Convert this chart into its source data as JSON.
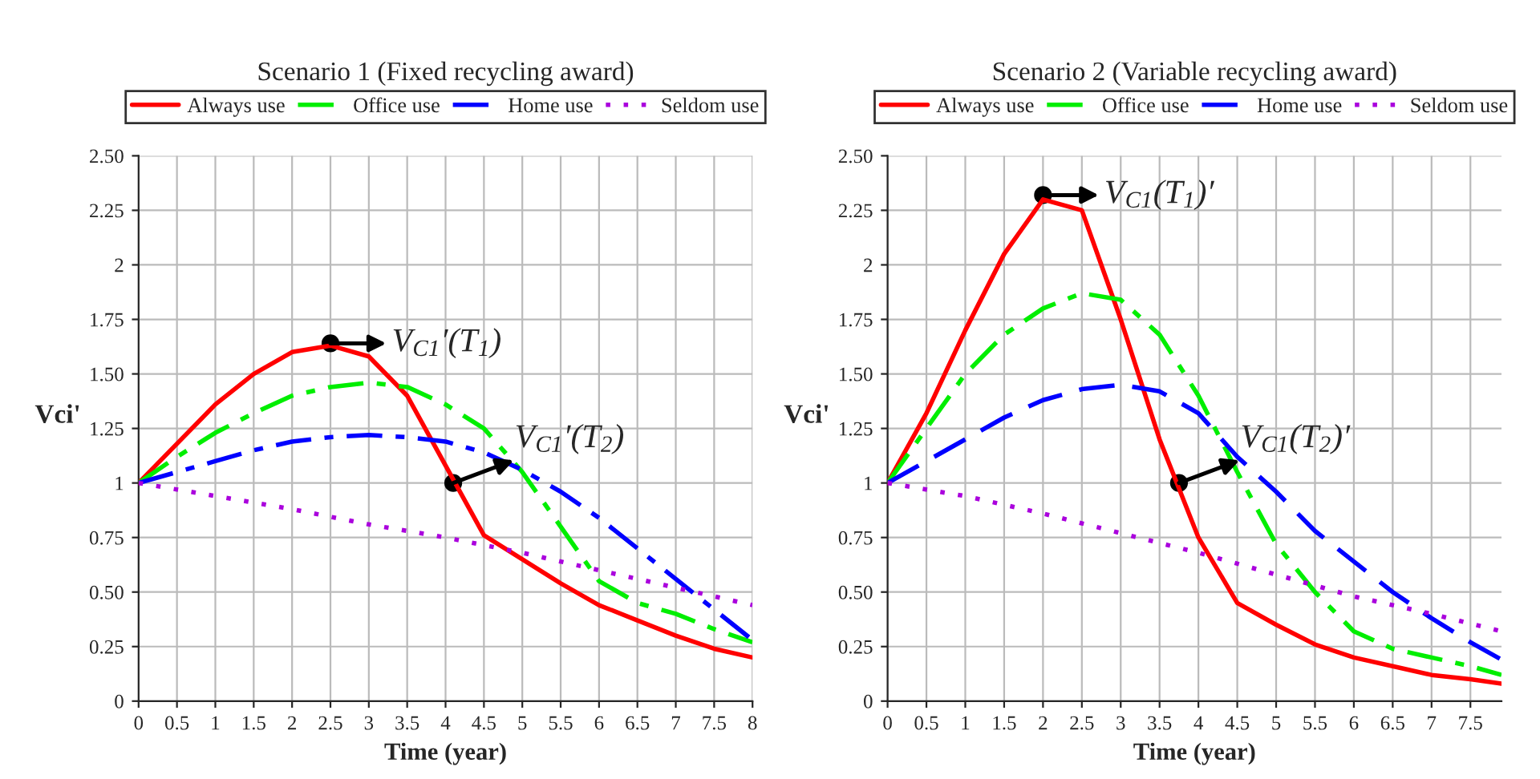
{
  "chart_data": [
    {
      "type": "line",
      "title": "Scenario 1 (Fixed recycling award)",
      "xlabel": "Time (year)",
      "ylabel": "Vci'",
      "xlim": [
        0,
        8
      ],
      "xticks": [
        0,
        0.5,
        1,
        1.5,
        2,
        2.5,
        3,
        3.5,
        4,
        4.5,
        5,
        5.5,
        6,
        6.5,
        7,
        7.5,
        8
      ],
      "ylim": [
        0,
        2.5
      ],
      "yticks": [
        0,
        0.25,
        {
          "value": 0.5,
          "label": "0.50"
        },
        0.75,
        1,
        1.25,
        {
          "value": 1.5,
          "label": "1.50"
        },
        1.75,
        2,
        2.25,
        {
          "value": 2.5,
          "label": "2.50"
        }
      ],
      "grid": true,
      "legend": "top",
      "marker": "none",
      "annotations": [
        {
          "text": "V$_{C1}$′(T$_{1}$)",
          "x": 2.5,
          "y": 1.64
        },
        {
          "text": "V$_{C1}$′(T$_{2}$)",
          "x": 4.1,
          "y": 1.0
        }
      ],
      "series": [
        {
          "name": "Always use",
          "color": "#ff0000",
          "line_style": "solid",
          "x": [
            0,
            0.5,
            1,
            1.5,
            2,
            2.5,
            3,
            3.5,
            4,
            4.5,
            5,
            5.5,
            6,
            6.5,
            7,
            7.5,
            8
          ],
          "values": [
            1,
            1.18,
            1.36,
            1.5,
            1.6,
            1.63,
            1.58,
            1.4,
            1.08,
            0.76,
            0.65,
            0.54,
            0.44,
            0.37,
            0.3,
            0.24,
            0.2
          ]
        },
        {
          "name": "Office use",
          "color": "#00ee00",
          "line_style": "dashdot",
          "x": [
            0,
            0.5,
            1,
            1.5,
            2,
            2.5,
            3,
            3.5,
            4,
            4.5,
            5,
            5.5,
            6,
            6.5,
            7,
            7.5,
            8
          ],
          "values": [
            1,
            1.12,
            1.23,
            1.32,
            1.4,
            1.44,
            1.46,
            1.44,
            1.36,
            1.25,
            1.05,
            0.8,
            0.55,
            0.45,
            0.4,
            0.33,
            0.27
          ]
        },
        {
          "name": "Home use",
          "color": "#0000ff",
          "line_style": "dashdot",
          "x": [
            0,
            0.5,
            1,
            1.5,
            2,
            2.5,
            3,
            3.5,
            4,
            4.5,
            5,
            5.5,
            6,
            6.5,
            7,
            7.5,
            8
          ],
          "values": [
            1,
            1.05,
            1.1,
            1.15,
            1.19,
            1.21,
            1.22,
            1.21,
            1.19,
            1.14,
            1.06,
            0.96,
            0.84,
            0.7,
            0.56,
            0.42,
            0.28
          ]
        },
        {
          "name": "Seldom use",
          "color": "#aa00dd",
          "line_style": "dotted",
          "x": [
            0,
            1,
            2,
            3,
            4,
            5,
            6,
            7,
            8
          ],
          "values": [
            1,
            0.94,
            0.88,
            0.81,
            0.75,
            0.68,
            0.6,
            0.52,
            0.44
          ]
        }
      ]
    },
    {
      "type": "line",
      "title": "Scenario 2 (Variable recycling award)",
      "xlabel": "Time (year)",
      "ylabel": "Vci'",
      "xlim": [
        0,
        7.9
      ],
      "xticks": [
        0,
        0.5,
        1,
        1.5,
        2,
        2.5,
        3,
        3.5,
        4,
        4.5,
        5,
        5.5,
        6,
        6.5,
        7,
        7.5
      ],
      "ylim": [
        0,
        2.5
      ],
      "yticks": [
        0,
        0.25,
        {
          "value": 0.5,
          "label": "0.50"
        },
        0.75,
        1,
        1.25,
        {
          "value": 1.5,
          "label": "1.50"
        },
        1.75,
        2,
        2.25,
        {
          "value": 2.5,
          "label": "2.50"
        }
      ],
      "grid": true,
      "legend": "top",
      "marker": "none",
      "annotations": [
        {
          "text": "V$_{C1}$(T$_{1}$)′",
          "x": 2,
          "y": 2.32
        },
        {
          "text": "V$_{C1}$(T$_{2}$)′",
          "x": 3.75,
          "y": 1.0
        }
      ],
      "series": [
        {
          "name": "Always use",
          "color": "#ff0000",
          "line_style": "solid",
          "x": [
            0,
            0.5,
            1,
            1.5,
            2,
            2.5,
            3,
            3.5,
            4,
            4.5,
            5,
            5.5,
            6,
            6.5,
            7,
            7.5,
            7.9
          ],
          "values": [
            1,
            1.32,
            1.7,
            2.05,
            2.3,
            2.25,
            1.75,
            1.2,
            0.75,
            0.45,
            0.35,
            0.26,
            0.2,
            0.16,
            0.12,
            0.1,
            0.08
          ]
        },
        {
          "name": "Office use",
          "color": "#00ee00",
          "line_style": "dashdot",
          "x": [
            0,
            0.5,
            1,
            1.5,
            2,
            2.5,
            3,
            3.5,
            4,
            4.5,
            5,
            5.5,
            6,
            6.5,
            7,
            7.5,
            7.9
          ],
          "values": [
            1,
            1.25,
            1.5,
            1.68,
            1.8,
            1.87,
            1.84,
            1.68,
            1.4,
            1.05,
            0.72,
            0.5,
            0.32,
            0.24,
            0.2,
            0.16,
            0.12
          ]
        },
        {
          "name": "Home use",
          "color": "#0000ff",
          "line_style": "dashed",
          "x": [
            0,
            0.5,
            1,
            1.5,
            2,
            2.5,
            3,
            3.5,
            4,
            4.5,
            5,
            5.5,
            6,
            6.5,
            7,
            7.5,
            7.9
          ],
          "values": [
            1,
            1.1,
            1.2,
            1.3,
            1.38,
            1.43,
            1.45,
            1.42,
            1.32,
            1.12,
            0.96,
            0.78,
            0.64,
            0.5,
            0.38,
            0.27,
            0.19
          ]
        },
        {
          "name": "Seldom use",
          "color": "#aa00dd",
          "line_style": "dotted",
          "x": [
            0,
            1,
            2,
            3,
            4,
            5,
            6,
            7,
            7.9
          ],
          "values": [
            1,
            0.94,
            0.86,
            0.77,
            0.68,
            0.58,
            0.48,
            0.4,
            0.32
          ]
        }
      ]
    }
  ]
}
